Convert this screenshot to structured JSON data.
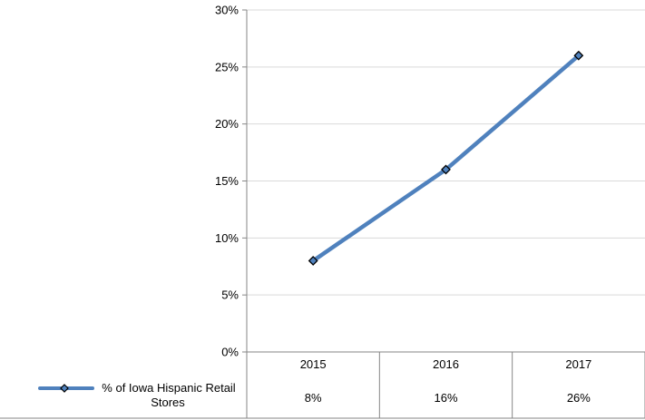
{
  "chart_data": {
    "type": "line",
    "categories": [
      "2015",
      "2016",
      "2017"
    ],
    "series": [
      {
        "name": "% of Iowa Hispanic Retail Stores",
        "name_lines": [
          "% of Iowa Hispanic Retail",
          "Stores"
        ],
        "values": [
          8,
          16,
          26
        ],
        "value_labels": [
          "8%",
          "16%",
          "26%"
        ],
        "color": "#4f81bd",
        "marker": "diamond"
      }
    ],
    "y_ticks": [
      "0%",
      "5%",
      "10%",
      "15%",
      "20%",
      "25%",
      "30%"
    ],
    "ylim": [
      0,
      30
    ],
    "grid": true,
    "legend": "data-table-left",
    "title": "",
    "xlabel": "",
    "ylabel": ""
  }
}
